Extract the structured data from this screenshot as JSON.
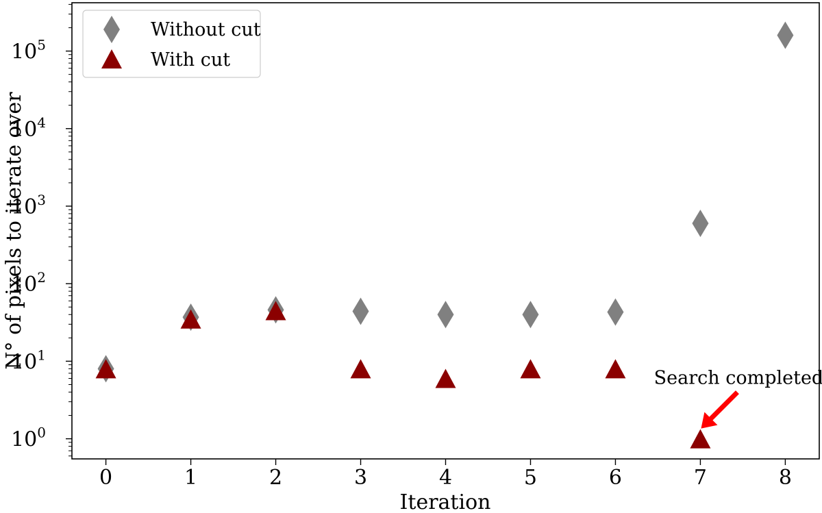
{
  "chart_data": {
    "type": "scatter",
    "xlabel": "Iteration",
    "ylabel": "N° of pixels to iterate over",
    "yscale": "log",
    "xlim": [
      -0.4,
      8.4
    ],
    "ylim": [
      0.55,
      420000
    ],
    "x_ticks": [
      "0",
      "1",
      "2",
      "3",
      "4",
      "5",
      "6",
      "7",
      "8"
    ],
    "y_ticks": [
      {
        "value": 1,
        "base": "10",
        "exp": "0"
      },
      {
        "value": 10,
        "base": "10",
        "exp": "1"
      },
      {
        "value": 100,
        "base": "10",
        "exp": "2"
      },
      {
        "value": 1000,
        "base": "10",
        "exp": "3"
      },
      {
        "value": 10000,
        "base": "10",
        "exp": "4"
      },
      {
        "value": 100000,
        "base": "10",
        "exp": "5"
      }
    ],
    "series": [
      {
        "name": "Without cut",
        "marker": "diamond",
        "color": "#808080",
        "x": [
          0,
          1,
          2,
          3,
          4,
          5,
          6,
          7,
          8
        ],
        "y": [
          8,
          37,
          46,
          44,
          40,
          40,
          43,
          600,
          160000
        ]
      },
      {
        "name": "With cut",
        "marker": "triangle",
        "color": "#8b0000",
        "x": [
          0,
          1,
          2,
          3,
          4,
          5,
          6,
          7
        ],
        "y": [
          8,
          35,
          45,
          8,
          6,
          8,
          8,
          1
        ]
      }
    ],
    "legend": {
      "position": "top-left"
    },
    "annotation": {
      "text": "Search completed",
      "x": 7,
      "y": 1,
      "arrow_color": "#ff0000"
    },
    "grid": false
  }
}
